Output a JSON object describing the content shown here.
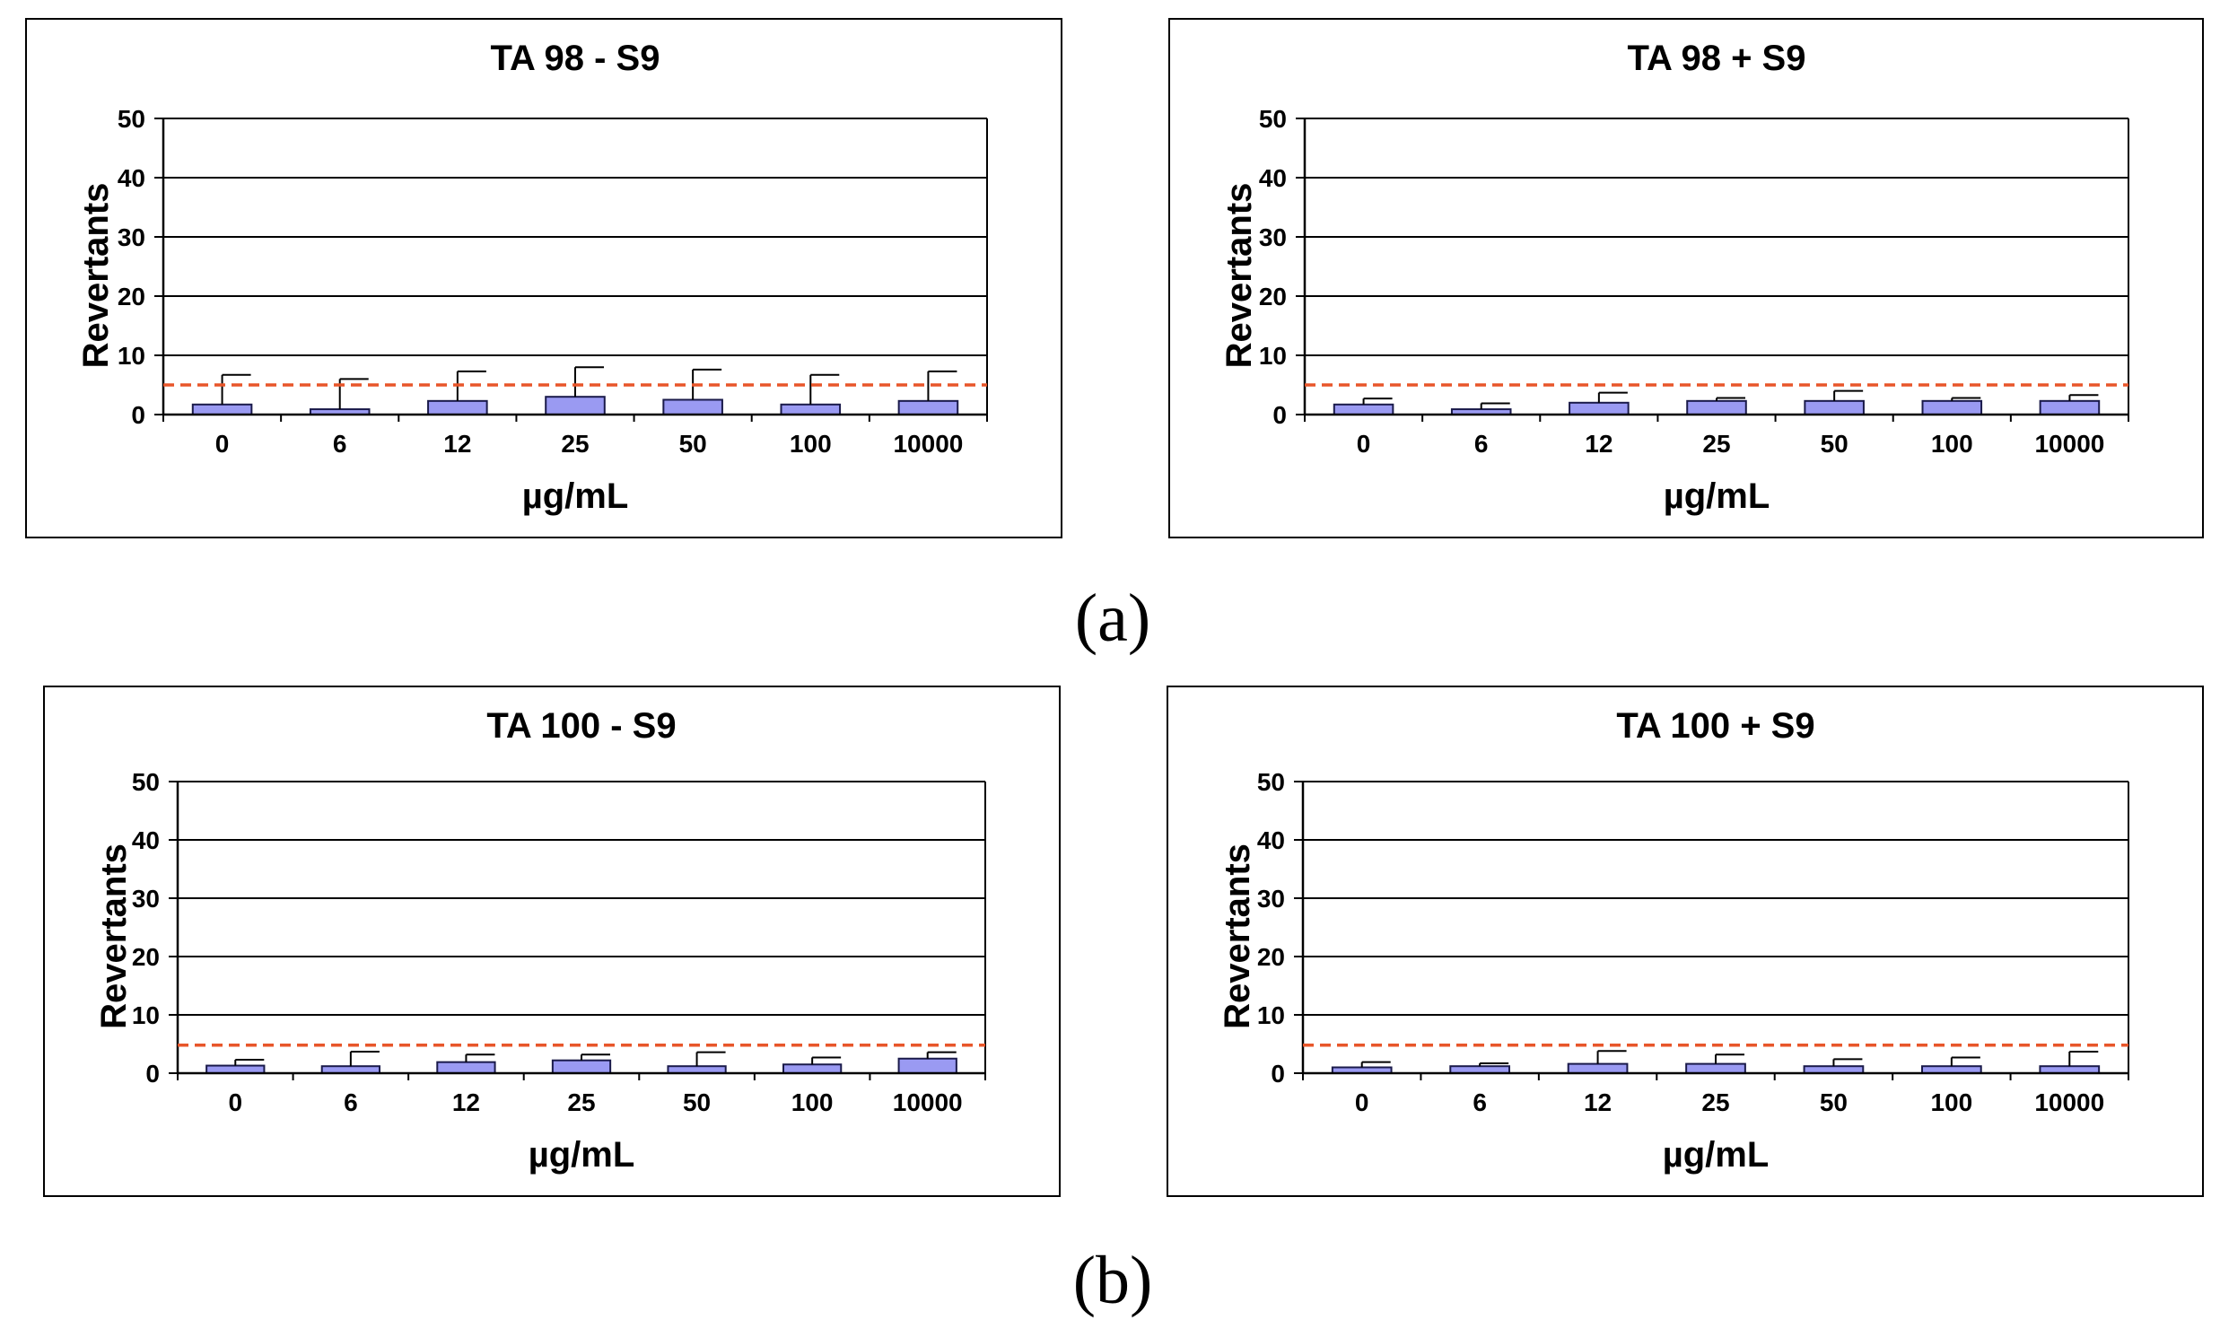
{
  "captions": {
    "a": "(a)",
    "b": "(b)"
  },
  "colors": {
    "bar_fill": "#9a9af2",
    "bar_stroke": "#1a1a4a",
    "threshold": "#e8562a",
    "grid": "#000000"
  },
  "chart_data": [
    {
      "id": "ta98-minus",
      "type": "bar",
      "title": "TA 98 - S9",
      "xlabel": "µg/mL",
      "ylabel": "Revertants",
      "categories": [
        "0",
        "6",
        "12",
        "25",
        "50",
        "100",
        "10000"
      ],
      "values": [
        1.7,
        0.9,
        2.3,
        3.0,
        2.5,
        1.7,
        2.3
      ],
      "errors": [
        5.0,
        5.1,
        5.0,
        5.0,
        5.1,
        5.0,
        5.0
      ],
      "threshold": 5,
      "ylim": [
        0,
        50
      ],
      "yticks": [
        "0",
        "10",
        "20",
        "30",
        "40",
        "50"
      ]
    },
    {
      "id": "ta98-plus",
      "type": "bar",
      "title": "TA 98 + S9",
      "xlabel": "µg/mL",
      "ylabel": "Revertants",
      "categories": [
        "0",
        "6",
        "12",
        "25",
        "50",
        "100",
        "10000"
      ],
      "values": [
        1.7,
        0.9,
        2.0,
        2.3,
        2.3,
        2.3,
        2.3
      ],
      "errors": [
        1.0,
        1.0,
        1.7,
        0.5,
        1.7,
        0.5,
        1.0
      ],
      "threshold": 5,
      "ylim": [
        0,
        50
      ],
      "yticks": [
        "0",
        "10",
        "20",
        "30",
        "40",
        "50"
      ]
    },
    {
      "id": "ta100-minus",
      "type": "bar",
      "title": "TA 100 - S9",
      "xlabel": "µg/mL",
      "ylabel": "Revertants",
      "categories": [
        "0",
        "6",
        "12",
        "25",
        "50",
        "100",
        "10000"
      ],
      "values": [
        1.3,
        1.2,
        1.9,
        2.2,
        1.2,
        1.5,
        2.5
      ],
      "errors": [
        1.0,
        2.5,
        1.3,
        1.0,
        2.4,
        1.2,
        1.1
      ],
      "threshold": 4.8,
      "ylim": [
        0,
        50
      ],
      "yticks": [
        "0",
        "10",
        "20",
        "30",
        "40",
        "50"
      ]
    },
    {
      "id": "ta100-plus",
      "type": "bar",
      "title": "TA 100 + S9",
      "xlabel": "µg/mL",
      "ylabel": "Revertants",
      "categories": [
        "0",
        "6",
        "12",
        "25",
        "50",
        "100",
        "10000"
      ],
      "values": [
        1.0,
        1.2,
        1.6,
        1.6,
        1.2,
        1.2,
        1.2
      ],
      "errors": [
        0.9,
        0.5,
        2.2,
        1.6,
        1.2,
        1.5,
        2.5
      ],
      "threshold": 4.8,
      "ylim": [
        0,
        50
      ],
      "yticks": [
        "0",
        "10",
        "20",
        "30",
        "40",
        "50"
      ]
    }
  ]
}
